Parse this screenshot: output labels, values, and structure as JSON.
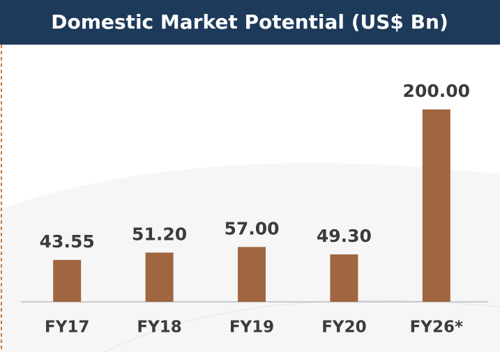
{
  "chart_data": {
    "type": "bar",
    "title": "Domestic Market Potential (US$ Bn)",
    "categories": [
      "FY17",
      "FY18",
      "FY19",
      "FY20",
      "FY26*"
    ],
    "values": [
      43.55,
      51.2,
      57,
      49.3,
      200
    ],
    "value_labels": [
      "43.55",
      "51.20",
      "57.00",
      "49.30",
      "200.00"
    ],
    "color": "#a0663f",
    "ylim": [
      0,
      200
    ]
  }
}
